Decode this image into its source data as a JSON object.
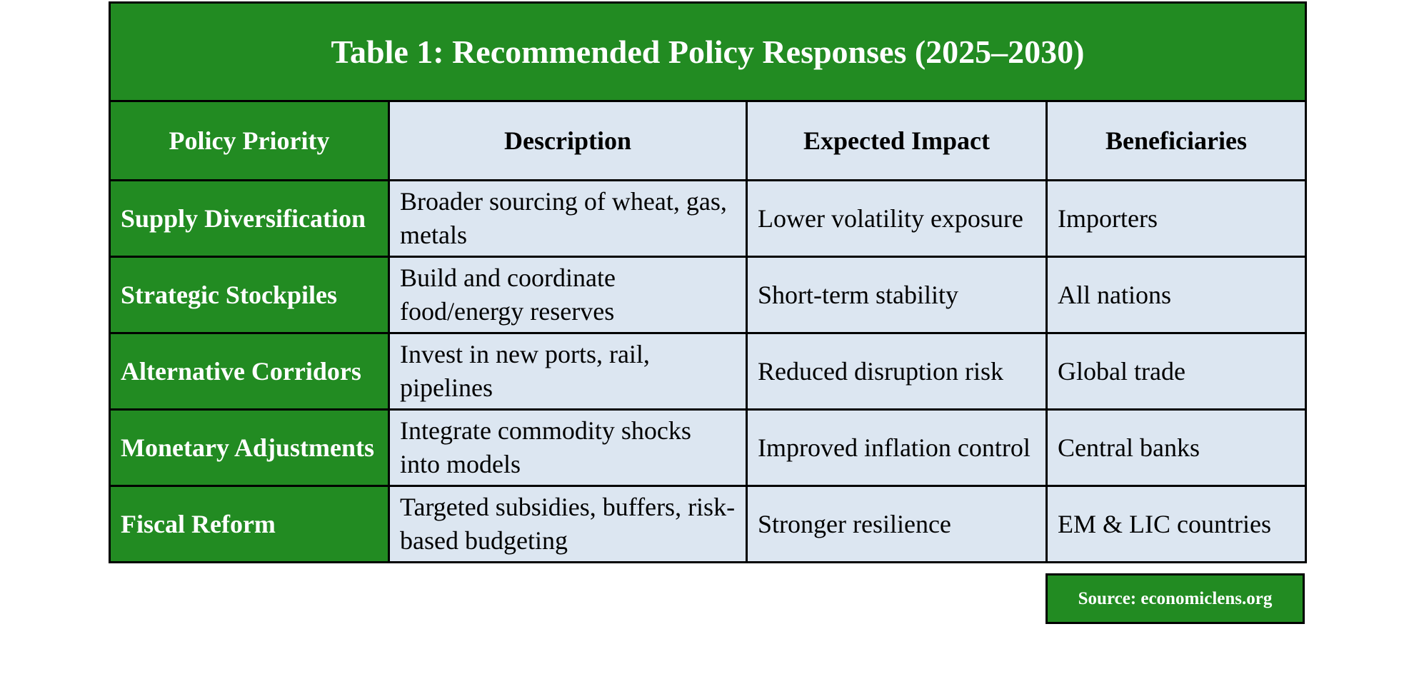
{
  "header": {
    "title": "Table 1: Recommended Policy Responses (2025–2030)"
  },
  "table": {
    "columns": [
      "Policy Priority",
      "Description",
      "Expected Impact",
      "Beneficiaries"
    ],
    "rows": [
      [
        "Supply Diversification",
        "Broader sourcing of wheat, gas, metals",
        "Lower volatility exposure",
        "Importers"
      ],
      [
        "Strategic Stockpiles",
        "Build and coordinate food/energy reserves",
        "Short-term stability",
        "All nations"
      ],
      [
        "Alternative Corridors",
        "Invest in new ports, rail, pipelines",
        "Reduced disruption risk",
        "Global trade"
      ],
      [
        "Monetary Adjustments",
        "Integrate commodity shocks into models",
        "Improved inflation control",
        "Central banks"
      ],
      [
        "Fiscal Reform",
        "Targeted subsidies, buffers, risk-based budgeting",
        "Stronger resilience",
        "EM & LIC countries"
      ]
    ]
  },
  "source": "Source: economiclens.org"
}
